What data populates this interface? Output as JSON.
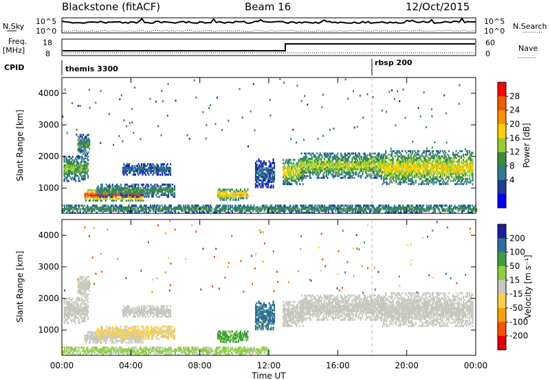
{
  "header": {
    "station": "Blackstone (fitACF)",
    "beam": "Beam 16",
    "date": "12/Oct/2015"
  },
  "sky_panel": {
    "left_label": "N.Sky",
    "right_label": "N.Search",
    "ticks": [
      "10^5",
      "10^0"
    ]
  },
  "freq_panel": {
    "left_label": "Freq.",
    "left_unit": "[MHz]",
    "left_ticks": [
      "18",
      "8"
    ],
    "right_label": "Nave",
    "right_ticks": [
      "60",
      "0"
    ]
  },
  "cpid_panel": {
    "label": "CPID",
    "segments": [
      {
        "name": "themis 3300",
        "start_h": 0
      },
      {
        "name": "rbsp 200",
        "start_h": 18
      }
    ]
  },
  "x_axis": {
    "label": "Time UT",
    "ticks": [
      "00:00",
      "04:00",
      "08:00",
      "12:00",
      "16:00",
      "20:00",
      "00:00"
    ]
  },
  "chart_data": [
    {
      "type": "heatmap",
      "title": "",
      "xlabel": "Time UT",
      "ylabel": "Slant Range [km]",
      "xlim": [
        0,
        24
      ],
      "ylim": [
        200,
        4500
      ],
      "y_ticks": [
        "1000",
        "2000",
        "3000",
        "4000"
      ],
      "colorbar": {
        "label": "Power [dB]",
        "ticks": [
          "28",
          "24",
          "20",
          "16",
          "12",
          "8",
          "4"
        ],
        "colors": [
          "#ff0000",
          "#f05a00",
          "#ff9000",
          "#ffd000",
          "#9acd32",
          "#3c8c3c",
          "#2d7d8c",
          "#1e3c9a",
          "#0000ff"
        ]
      },
      "regions": [
        {
          "t0": 0.1,
          "t1": 1.5,
          "r0": 1200,
          "r1": 2000,
          "level": 12
        },
        {
          "t0": 0.9,
          "t1": 1.6,
          "r0": 2000,
          "r1": 2700,
          "level": 10
        },
        {
          "t0": 1.3,
          "t1": 4.7,
          "r0": 580,
          "r1": 950,
          "level": 26
        },
        {
          "t0": 2.0,
          "t1": 6.5,
          "r0": 700,
          "r1": 1100,
          "level": 10
        },
        {
          "t0": 3.5,
          "t1": 6.3,
          "r0": 1400,
          "r1": 1750,
          "level": 6
        },
        {
          "t0": 9.0,
          "t1": 10.8,
          "r0": 600,
          "r1": 950,
          "level": 18
        },
        {
          "t0": 11.2,
          "t1": 12.3,
          "r0": 1000,
          "r1": 1900,
          "level": 5
        },
        {
          "t0": 12.8,
          "t1": 14.0,
          "r0": 1100,
          "r1": 1900,
          "level": 16
        },
        {
          "t0": 13.8,
          "t1": 18.5,
          "r0": 1300,
          "r1": 2100,
          "level": 14
        },
        {
          "t0": 18.5,
          "t1": 23.8,
          "r0": 1100,
          "r1": 2150,
          "level": 16
        },
        {
          "t0": 0.0,
          "t1": 24.0,
          "r0": 200,
          "r1": 450,
          "level": 10
        }
      ]
    },
    {
      "type": "heatmap",
      "title": "",
      "xlabel": "Time UT",
      "ylabel": "Slant Range [km]",
      "xlim": [
        0,
        24
      ],
      "ylim": [
        200,
        4500
      ],
      "y_ticks": [
        "1000",
        "2000",
        "3000",
        "4000"
      ],
      "colorbar": {
        "label": "Velocity [m s⁻¹]",
        "ticks": [
          "200",
          "100",
          "50",
          "15",
          "-15",
          "-50",
          "-100",
          "-200"
        ],
        "colors": [
          "#1e1e9a",
          "#2d6ea0",
          "#3ca03c",
          "#8cd23c",
          "#c8c8c0",
          "#ffd24a",
          "#ffa000",
          "#ff5000",
          "#e60000"
        ]
      },
      "regions": [
        {
          "t0": 0.1,
          "t1": 1.5,
          "r0": 1200,
          "r1": 2000,
          "level": 0
        },
        {
          "t0": 0.9,
          "t1": 1.6,
          "r0": 2000,
          "r1": 2700,
          "level": 0
        },
        {
          "t0": 1.3,
          "t1": 4.7,
          "r0": 580,
          "r1": 950,
          "level": 0
        },
        {
          "t0": 2.0,
          "t1": 6.5,
          "r0": 700,
          "r1": 1100,
          "level": -20
        },
        {
          "t0": 3.5,
          "t1": 6.3,
          "r0": 1400,
          "r1": 1750,
          "level": 0
        },
        {
          "t0": 9.0,
          "t1": 10.8,
          "r0": 600,
          "r1": 950,
          "level": 60
        },
        {
          "t0": 11.2,
          "t1": 12.3,
          "r0": 1000,
          "r1": 1900,
          "level": 110
        },
        {
          "t0": 12.8,
          "t1": 14.0,
          "r0": 1100,
          "r1": 1900,
          "level": 0
        },
        {
          "t0": 13.8,
          "t1": 18.5,
          "r0": 1300,
          "r1": 2100,
          "level": 0
        },
        {
          "t0": 18.5,
          "t1": 23.8,
          "r0": 1100,
          "r1": 2150,
          "level": 0
        },
        {
          "t0": 0.0,
          "t1": 12.0,
          "r0": 200,
          "r1": 450,
          "level": 20
        }
      ]
    }
  ]
}
